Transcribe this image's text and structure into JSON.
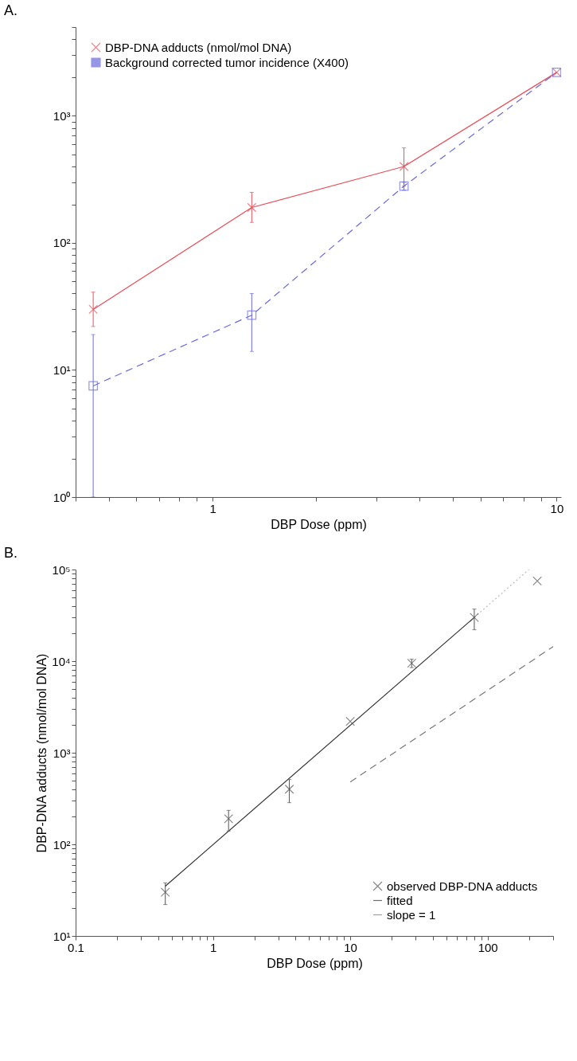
{
  "chart_data": [
    {
      "type": "line",
      "title": "A.",
      "xlabel": "DBP Dose (ppm)",
      "log": "xy",
      "grid": false,
      "legend": "top left",
      "x": [
        0.45,
        1.3,
        3.6,
        10
      ],
      "series": [
        {
          "name": "DBP-DNA adducts (nmol/mol DNA)",
          "color": "#e8505b",
          "marker": "cross",
          "line_style": "solid",
          "values": [
            30,
            190,
            400,
            2200
          ],
          "errors": [
            [
              22,
              41
            ],
            [
              145,
              250
            ],
            [
              280,
              560
            ],
            null
          ]
        },
        {
          "name": "Background corrected tumor incidence (X400)",
          "color": "#6a6ae0",
          "marker": "square",
          "line_style": "dashed",
          "values": [
            7.5,
            27,
            280,
            2200
          ],
          "errors": [
            [
              1,
              19
            ],
            [
              14,
              40
            ],
            [
              260,
              300
            ],
            null
          ]
        }
      ],
      "xlim": [
        0.4,
        10.3
      ],
      "xticks": [
        {
          "value": 0.4,
          "label": null
        },
        {
          "value": 0.5,
          "label": null
        },
        {
          "value": 0.6,
          "label": null
        },
        {
          "value": 0.7,
          "label": null
        },
        {
          "value": 0.8,
          "label": null
        },
        {
          "value": 0.9,
          "label": null
        },
        1,
        {
          "value": 2,
          "label": null
        },
        {
          "value": 3,
          "label": null
        },
        {
          "value": 4,
          "label": null
        },
        {
          "value": 5,
          "label": null
        },
        {
          "value": 6,
          "label": null
        },
        {
          "value": 7,
          "label": null
        },
        {
          "value": 8,
          "label": null
        },
        {
          "value": 9,
          "label": null
        },
        10
      ],
      "ylim": [
        1,
        5000
      ],
      "yticks": [
        {
          "value": 1,
          "label": "10⁰"
        },
        {
          "value": 2,
          "label": null
        },
        {
          "value": 3,
          "label": null
        },
        {
          "value": 4,
          "label": null
        },
        {
          "value": 5,
          "label": null
        },
        {
          "value": 6,
          "label": null
        },
        {
          "value": 7,
          "label": null
        },
        {
          "value": 8,
          "label": null
        },
        {
          "value": 9,
          "label": null
        },
        {
          "value": 10,
          "label": "10¹"
        },
        {
          "value": 20,
          "label": null
        },
        {
          "value": 30,
          "label": null
        },
        {
          "value": 40,
          "label": null
        },
        {
          "value": 50,
          "label": null
        },
        {
          "value": 60,
          "label": null
        },
        {
          "value": 70,
          "label": null
        },
        {
          "value": 80,
          "label": null
        },
        {
          "value": 90,
          "label": null
        },
        {
          "value": 100,
          "label": "10²"
        },
        {
          "value": 200,
          "label": null
        },
        {
          "value": 300,
          "label": null
        },
        {
          "value": 400,
          "label": null
        },
        {
          "value": 500,
          "label": null
        },
        {
          "value": 600,
          "label": null
        },
        {
          "value": 700,
          "label": null
        },
        {
          "value": 800,
          "label": null
        },
        {
          "value": 900,
          "label": null
        },
        {
          "value": 1000,
          "label": "10³"
        },
        {
          "value": 2000,
          "label": null
        },
        {
          "value": 3000,
          "label": null
        },
        {
          "value": 4000,
          "label": null
        },
        {
          "value": 5000,
          "label": null
        }
      ]
    },
    {
      "type": "scatter",
      "title": "B.",
      "xlabel": "DBP Dose (ppm)",
      "ylabel": "DBP-DNA adducts (nmol/mol DNA)",
      "log": "xy",
      "grid": false,
      "legend": "bottom right",
      "series": [
        {
          "name": "observed DBP-DNA adducts",
          "type": "scatter",
          "color": "#555555",
          "marker": "cross",
          "x": [
            0.45,
            1.3,
            3.6,
            10,
            28,
            80,
            230
          ],
          "values": [
            30,
            190,
            400,
            2200,
            9500,
            30000,
            75000
          ],
          "errors": [
            [
              22,
              38
            ],
            [
              140,
              235
            ],
            [
              285,
              510
            ],
            null,
            [
              8500,
              10500
            ],
            [
              22000,
              37000
            ],
            null
          ]
        },
        {
          "name": "fitted",
          "type": "line",
          "color": "#333333",
          "marker": "none",
          "line_style": "solid",
          "x": [
            0.45,
            80
          ],
          "values": [
            35,
            30000
          ]
        },
        {
          "type": "line",
          "color": "#bbbbbb",
          "marker": "none",
          "line_style": "dotted",
          "x": [
            80,
            200
          ],
          "values": [
            30000,
            100000
          ]
        },
        {
          "name": "slope = 1",
          "type": "line",
          "color": "#777777",
          "marker": "none",
          "line_style": "dashed",
          "x": [
            10,
            300
          ],
          "values": [
            480,
            14400
          ]
        }
      ],
      "xlim": [
        0.1,
        300
      ],
      "xticks": [
        0.1,
        {
          "value": 0.2,
          "label": null
        },
        {
          "value": 0.3,
          "label": null
        },
        {
          "value": 0.4,
          "label": null
        },
        {
          "value": 0.5,
          "label": null
        },
        {
          "value": 0.6,
          "label": null
        },
        {
          "value": 0.7,
          "label": null
        },
        {
          "value": 0.8,
          "label": null
        },
        {
          "value": 0.9,
          "label": null
        },
        1,
        {
          "value": 2,
          "label": null
        },
        {
          "value": 3,
          "label": null
        },
        {
          "value": 4,
          "label": null
        },
        {
          "value": 5,
          "label": null
        },
        {
          "value": 6,
          "label": null
        },
        {
          "value": 7,
          "label": null
        },
        {
          "value": 8,
          "label": null
        },
        {
          "value": 9,
          "label": null
        },
        10,
        {
          "value": 20,
          "label": null
        },
        {
          "value": 30,
          "label": null
        },
        {
          "value": 40,
          "label": null
        },
        {
          "value": 50,
          "label": null
        },
        {
          "value": 60,
          "label": null
        },
        {
          "value": 70,
          "label": null
        },
        {
          "value": 80,
          "label": null
        },
        {
          "value": 90,
          "label": null
        },
        100,
        {
          "value": 200,
          "label": null
        },
        {
          "value": 300,
          "label": null
        }
      ],
      "ylim": [
        10,
        100000
      ],
      "yticks": [
        {
          "value": 10,
          "label": "10¹"
        },
        {
          "value": 20,
          "label": null
        },
        {
          "value": 30,
          "label": null
        },
        {
          "value": 40,
          "label": null
        },
        {
          "value": 50,
          "label": null
        },
        {
          "value": 60,
          "label": null
        },
        {
          "value": 70,
          "label": null
        },
        {
          "value": 80,
          "label": null
        },
        {
          "value": 90,
          "label": null
        },
        {
          "value": 100,
          "label": "10²"
        },
        {
          "value": 200,
          "label": null
        },
        {
          "value": 300,
          "label": null
        },
        {
          "value": 400,
          "label": null
        },
        {
          "value": 500,
          "label": null
        },
        {
          "value": 600,
          "label": null
        },
        {
          "value": 700,
          "label": null
        },
        {
          "value": 800,
          "label": null
        },
        {
          "value": 900,
          "label": null
        },
        {
          "value": 1000,
          "label": "10³"
        },
        {
          "value": 2000,
          "label": null
        },
        {
          "value": 3000,
          "label": null
        },
        {
          "value": 4000,
          "label": null
        },
        {
          "value": 5000,
          "label": null
        },
        {
          "value": 6000,
          "label": null
        },
        {
          "value": 7000,
          "label": null
        },
        {
          "value": 8000,
          "label": null
        },
        {
          "value": 9000,
          "label": null
        },
        {
          "value": 10000,
          "label": "10⁴"
        },
        {
          "value": 20000,
          "label": null
        },
        {
          "value": 30000,
          "label": null
        },
        {
          "value": 40000,
          "label": null
        },
        {
          "value": 50000,
          "label": null
        },
        {
          "value": 60000,
          "label": null
        },
        {
          "value": 70000,
          "label": null
        },
        {
          "value": 80000,
          "label": null
        },
        {
          "value": 90000,
          "label": null
        },
        {
          "value": 100000,
          "label": "10⁵"
        }
      ]
    }
  ]
}
